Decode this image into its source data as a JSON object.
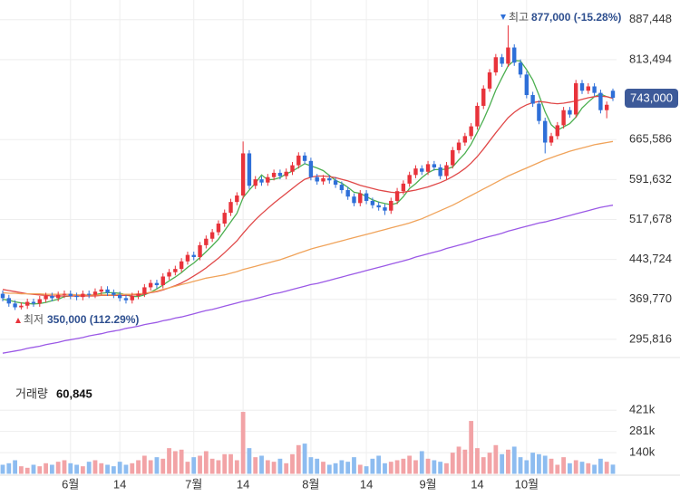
{
  "chart_data": {
    "type": "candlestick",
    "categories": [
      null,
      null,
      null,
      null,
      null,
      null,
      null,
      null,
      null,
      null,
      null,
      "6월",
      null,
      null,
      null,
      null,
      null,
      null,
      null,
      "14",
      null,
      null,
      null,
      null,
      null,
      null,
      null,
      null,
      null,
      null,
      null,
      "7월",
      null,
      null,
      null,
      null,
      null,
      null,
      null,
      "14",
      null,
      null,
      null,
      null,
      null,
      null,
      null,
      null,
      null,
      null,
      "8월",
      null,
      null,
      null,
      null,
      null,
      null,
      null,
      null,
      "14",
      null,
      null,
      null,
      null,
      null,
      null,
      null,
      null,
      null,
      "9월",
      null,
      null,
      null,
      null,
      null,
      null,
      null,
      "14",
      null,
      null,
      null,
      null,
      null,
      null,
      null,
      "10월",
      null,
      null,
      null,
      null,
      null,
      null,
      null,
      null,
      null,
      null,
      null,
      null,
      null,
      null
    ],
    "open": [
      380000,
      372000,
      362000,
      355000,
      358000,
      365000,
      362000,
      370000,
      376000,
      372000,
      378000,
      380000,
      376000,
      374000,
      380000,
      378000,
      384000,
      388000,
      382000,
      378000,
      372000,
      368000,
      376000,
      380000,
      392000,
      400000,
      396000,
      412000,
      420000,
      426000,
      440000,
      452000,
      448000,
      470000,
      482000,
      494000,
      510000,
      530000,
      550000,
      562000,
      640000,
      580000,
      592000,
      586000,
      596000,
      604000,
      598000,
      606000,
      618000,
      636000,
      626000,
      596000,
      588000,
      594000,
      590000,
      582000,
      572000,
      560000,
      548000,
      566000,
      552000,
      544000,
      540000,
      534000,
      552000,
      570000,
      584000,
      600000,
      612000,
      606000,
      620000,
      614000,
      598000,
      618000,
      646000,
      660000,
      672000,
      690000,
      728000,
      760000,
      790000,
      818000,
      806000,
      836000,
      808000,
      786000,
      748000,
      732000,
      700000,
      660000,
      672000,
      692000,
      720000,
      712000,
      770000,
      756000,
      764000,
      752000,
      720000,
      756000
    ],
    "high": [
      386000,
      378000,
      368000,
      364000,
      371000,
      371000,
      376000,
      382000,
      382000,
      384000,
      386000,
      386000,
      382000,
      386000,
      386000,
      390000,
      394000,
      394000,
      388000,
      384000,
      378000,
      382000,
      386000,
      398000,
      406000,
      406000,
      418000,
      426000,
      432000,
      446000,
      458000,
      458000,
      476000,
      488000,
      500000,
      516000,
      536000,
      556000,
      568000,
      662000,
      646000,
      598000,
      598000,
      602000,
      610000,
      610000,
      612000,
      624000,
      642000,
      642000,
      632000,
      602000,
      600000,
      600000,
      596000,
      588000,
      578000,
      566000,
      572000,
      572000,
      558000,
      550000,
      546000,
      558000,
      576000,
      590000,
      606000,
      618000,
      618000,
      626000,
      626000,
      620000,
      624000,
      652000,
      666000,
      678000,
      696000,
      734000,
      766000,
      796000,
      824000,
      824000,
      877000,
      842000,
      814000,
      792000,
      754000,
      738000,
      706000,
      678000,
      698000,
      726000,
      726000,
      776000,
      776000,
      770000,
      770000,
      758000,
      736000,
      760000
    ],
    "low": [
      366000,
      356000,
      350000,
      351000,
      352000,
      356000,
      356000,
      364000,
      366000,
      366000,
      372000,
      370000,
      368000,
      368000,
      372000,
      372000,
      378000,
      376000,
      372000,
      366000,
      362000,
      362000,
      370000,
      374000,
      386000,
      390000,
      390000,
      406000,
      414000,
      420000,
      434000,
      442000,
      442000,
      464000,
      476000,
      488000,
      504000,
      524000,
      544000,
      556000,
      574000,
      574000,
      580000,
      580000,
      590000,
      592000,
      592000,
      600000,
      612000,
      620000,
      590000,
      582000,
      582000,
      584000,
      576000,
      566000,
      554000,
      542000,
      542000,
      546000,
      538000,
      534000,
      526000,
      528000,
      546000,
      564000,
      578000,
      594000,
      600000,
      600000,
      608000,
      592000,
      592000,
      612000,
      640000,
      654000,
      666000,
      684000,
      722000,
      754000,
      784000,
      800000,
      800000,
      802000,
      780000,
      742000,
      726000,
      694000,
      640000,
      654000,
      666000,
      686000,
      706000,
      706000,
      750000,
      750000,
      746000,
      714000,
      705000,
      737000
    ],
    "close": [
      372000,
      362000,
      355000,
      358000,
      365000,
      362000,
      370000,
      376000,
      372000,
      378000,
      380000,
      376000,
      374000,
      380000,
      378000,
      384000,
      388000,
      382000,
      378000,
      372000,
      368000,
      376000,
      380000,
      392000,
      400000,
      396000,
      412000,
      420000,
      426000,
      440000,
      452000,
      448000,
      470000,
      482000,
      494000,
      510000,
      530000,
      550000,
      562000,
      640000,
      580000,
      592000,
      586000,
      596000,
      604000,
      598000,
      606000,
      618000,
      636000,
      626000,
      596000,
      588000,
      594000,
      590000,
      582000,
      572000,
      560000,
      548000,
      566000,
      552000,
      544000,
      540000,
      534000,
      552000,
      570000,
      584000,
      600000,
      612000,
      606000,
      620000,
      614000,
      598000,
      618000,
      646000,
      660000,
      672000,
      690000,
      728000,
      760000,
      790000,
      818000,
      806000,
      836000,
      808000,
      786000,
      748000,
      732000,
      700000,
      660000,
      672000,
      692000,
      720000,
      712000,
      770000,
      756000,
      764000,
      752000,
      720000,
      730000,
      743000
    ],
    "up_color": "#e8333b",
    "down_color": "#2e6fd8",
    "volume_up_color": "#f2a3a6",
    "volume_down_color": "#8dbcf0",
    "moving_averages": [
      {
        "color": "#4caf50",
        "values": [
          370000,
          368000,
          365000,
          363000,
          362000,
          361000,
          362000,
          364000,
          367000,
          370000,
          375000,
          376000,
          376000,
          376000,
          377000,
          378000,
          381000,
          382000,
          382000,
          381000,
          378000,
          375000,
          375000,
          378000,
          383000,
          389000,
          396000,
          404000,
          411000,
          419000,
          429000,
          437000,
          447000,
          458000,
          469000,
          481000,
          497000,
          513000,
          529000,
          558000,
          572000,
          585000,
          600000,
          591000,
          592000,
          595000,
          602000,
          607000,
          614000,
          621000,
          617000,
          613000,
          608000,
          599000,
          590000,
          585000,
          577000,
          568000,
          566000,
          560000,
          554000,
          550000,
          547000,
          545000,
          548000,
          560000,
          575000,
          584000,
          595000,
          604000,
          610000,
          610000,
          611000,
          615000,
          628000,
          640000,
          657000,
          679000,
          702000,
          728000,
          757000,
          780000,
          802000,
          812000,
          811000,
          795000,
          776000,
          748000,
          717000,
          693000,
          683000,
          689000,
          695000,
          707000,
          724000,
          735000,
          745000,
          750000,
          745000,
          742000
        ]
      },
      {
        "color": "#e04848",
        "values": [
          388000,
          386000,
          384000,
          382000,
          380000,
          379000,
          378000,
          377000,
          376000,
          376000,
          376000,
          376000,
          376000,
          376000,
          376000,
          376000,
          377000,
          377000,
          377000,
          377000,
          377000,
          378000,
          378000,
          380000,
          382000,
          384000,
          387000,
          391000,
          395000,
          400000,
          406000,
          413000,
          420000,
          428000,
          437000,
          446000,
          456000,
          467000,
          478000,
          492000,
          505000,
          517000,
          528000,
          538000,
          548000,
          557000,
          566000,
          575000,
          584000,
          592000,
          596000,
          598000,
          598000,
          597000,
          595000,
          592000,
          589000,
          585000,
          581000,
          578000,
          575000,
          572000,
          570000,
          568000,
          567000,
          568000,
          570000,
          572000,
          575000,
          578000,
          582000,
          586000,
          591000,
          597000,
          604000,
          612000,
          622000,
          634000,
          648000,
          663000,
          678000,
          692000,
          706000,
          716000,
          724000,
          730000,
          734000,
          736000,
          735000,
          733000,
          732000,
          733000,
          735000,
          737000,
          740000,
          743000,
          745000,
          746000,
          745000,
          742000
        ]
      },
      {
        "color": "#f0a35a",
        "values": [
          382000,
          381000,
          381000,
          380000,
          380000,
          380000,
          380000,
          379000,
          379000,
          379000,
          379000,
          379000,
          378000,
          378000,
          378000,
          378000,
          378000,
          378000,
          378000,
          379000,
          379000,
          379000,
          380000,
          381000,
          383000,
          385000,
          388000,
          391000,
          394000,
          397000,
          400000,
          403000,
          406000,
          409000,
          411000,
          413000,
          415000,
          418000,
          421000,
          425000,
          428000,
          431000,
          434000,
          437000,
          440000,
          443000,
          447000,
          451000,
          455000,
          459000,
          463000,
          466000,
          469000,
          472000,
          475000,
          478000,
          481000,
          484000,
          487000,
          490000,
          493000,
          496000,
          499000,
          502000,
          505000,
          508000,
          511000,
          515000,
          519000,
          524000,
          529000,
          534000,
          539000,
          544000,
          550000,
          556000,
          562000,
          568000,
          574000,
          580000,
          586000,
          592000,
          598000,
          603000,
          608000,
          613000,
          618000,
          623000,
          628000,
          632000,
          636000,
          640000,
          644000,
          647000,
          650000,
          653000,
          656000,
          658000,
          660000,
          662000
        ]
      },
      {
        "color": "#9b59e6",
        "values": [
          270000,
          272000,
          274000,
          276000,
          279000,
          281000,
          283000,
          286000,
          288000,
          290000,
          293000,
          295000,
          297000,
          299000,
          302000,
          304000,
          306000,
          309000,
          311000,
          313000,
          316000,
          318000,
          320000,
          323000,
          325000,
          327000,
          330000,
          332000,
          335000,
          337000,
          340000,
          343000,
          346000,
          349000,
          351000,
          354000,
          357000,
          360000,
          363000,
          366000,
          368000,
          371000,
          374000,
          377000,
          380000,
          382000,
          385000,
          388000,
          391000,
          394000,
          397000,
          399000,
          402000,
          405000,
          408000,
          411000,
          414000,
          417000,
          420000,
          423000,
          426000,
          429000,
          432000,
          435000,
          438000,
          441000,
          444000,
          448000,
          451000,
          454000,
          457000,
          460000,
          464000,
          467000,
          470000,
          473000,
          476000,
          480000,
          483000,
          486000,
          489000,
          492000,
          496000,
          499000,
          502000,
          505000,
          508000,
          511000,
          513000,
          516000,
          519000,
          522000,
          525000,
          528000,
          531000,
          534000,
          537000,
          540000,
          542000,
          544000
        ]
      }
    ],
    "volume": [
      60000,
      70000,
      90000,
      50000,
      40000,
      60000,
      50000,
      70000,
      60000,
      80000,
      90000,
      70000,
      60000,
      50000,
      80000,
      90000,
      70000,
      60000,
      50000,
      80000,
      60000,
      70000,
      90000,
      120000,
      90000,
      110000,
      100000,
      170000,
      150000,
      160000,
      80000,
      110000,
      120000,
      150000,
      100000,
      90000,
      130000,
      130000,
      90000,
      410000,
      170000,
      110000,
      120000,
      90000,
      80000,
      100000,
      70000,
      130000,
      190000,
      200000,
      110000,
      100000,
      80000,
      60000,
      70000,
      90000,
      80000,
      110000,
      60000,
      50000,
      100000,
      120000,
      70000,
      80000,
      90000,
      100000,
      120000,
      90000,
      150000,
      100000,
      90000,
      80000,
      70000,
      140000,
      180000,
      160000,
      350000,
      170000,
      110000,
      140000,
      190000,
      130000,
      160000,
      180000,
      110000,
      90000,
      140000,
      130000,
      120000,
      100000,
      60000,
      110000,
      70000,
      90000,
      80000,
      70000,
      60000,
      100000,
      80000,
      60845
    ],
    "ylim": [
      262000,
      924000
    ],
    "yticks": [
      {
        "value": 295816,
        "label": "295,816"
      },
      {
        "value": 369770,
        "label": "369,770"
      },
      {
        "value": 443724,
        "label": "443,724"
      },
      {
        "value": 517678,
        "label": "517,678"
      },
      {
        "value": 591632,
        "label": "591,632"
      },
      {
        "value": 665586,
        "label": "665,586"
      },
      {
        "value": 813494,
        "label": "813,494"
      },
      {
        "value": 887448,
        "label": "887,448"
      }
    ],
    "volume_lim": [
      0,
      680000
    ],
    "volume_ticks": [
      {
        "value": 140000,
        "label": "140k"
      },
      {
        "value": 281000,
        "label": "281k"
      },
      {
        "value": 421000,
        "label": "421k"
      }
    ],
    "last_price_label": "743,000",
    "high_annotation": {
      "label": "최고",
      "value": "877,000 (-15.28%)"
    },
    "low_annotation": {
      "label": "최저",
      "value": "350,000 (112.29%)"
    },
    "volume_title": {
      "label": "거래량",
      "value": "60,845"
    },
    "grid": true
  }
}
